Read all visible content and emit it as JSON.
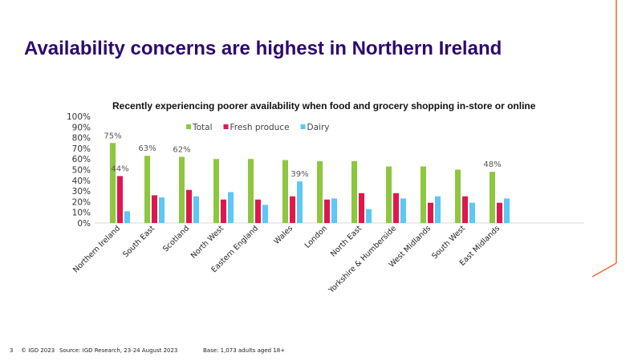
{
  "slide": {
    "title": "Availability concerns are highest in Northern Ireland",
    "page_number": "3",
    "copyright": "© IGD 2023",
    "source": "Source: IGD Research, 23-24 August 2023",
    "base": "Base: 1,073 adults aged 18+",
    "accent_color": "#f26a35",
    "title_color": "#2d0a6b"
  },
  "chart_data": {
    "type": "bar",
    "title": "Recently experiencing poorer availability when food and grocery shopping in-store or online",
    "categories": [
      "Northern Ireland",
      "South East",
      "Scotland",
      "North West",
      "Eastern England",
      "Wales",
      "London",
      "North East",
      "Yorkshire & Humberside",
      "West Midlands",
      "South West",
      "East Midlands"
    ],
    "series": [
      {
        "name": "Total",
        "color": "#8dc63f",
        "values": [
          75,
          63,
          62,
          60,
          60,
          59,
          58,
          58,
          53,
          53,
          50,
          48
        ]
      },
      {
        "name": "Fresh produce",
        "color": "#e0174f",
        "values": [
          44,
          26,
          31,
          22,
          22,
          25,
          22,
          28,
          28,
          19,
          25,
          19
        ]
      },
      {
        "name": "Dairy",
        "color": "#5bc8f5",
        "values": [
          11,
          24,
          25,
          29,
          17,
          39,
          23,
          13,
          23,
          25,
          19,
          23
        ]
      }
    ],
    "data_labels": [
      {
        "series": 0,
        "index": 0,
        "text": "75%"
      },
      {
        "series": 1,
        "index": 0,
        "text": "44%"
      },
      {
        "series": 0,
        "index": 1,
        "text": "63%"
      },
      {
        "series": 0,
        "index": 2,
        "text": "62%"
      },
      {
        "series": 2,
        "index": 5,
        "text": "39%"
      },
      {
        "series": 0,
        "index": 11,
        "text": "48%"
      }
    ],
    "yticks": [
      "0%",
      "10%",
      "20%",
      "30%",
      "40%",
      "50%",
      "60%",
      "70%",
      "80%",
      "90%",
      "100%"
    ],
    "ylim": [
      0,
      100
    ],
    "legend_position": "top",
    "grid": false
  }
}
